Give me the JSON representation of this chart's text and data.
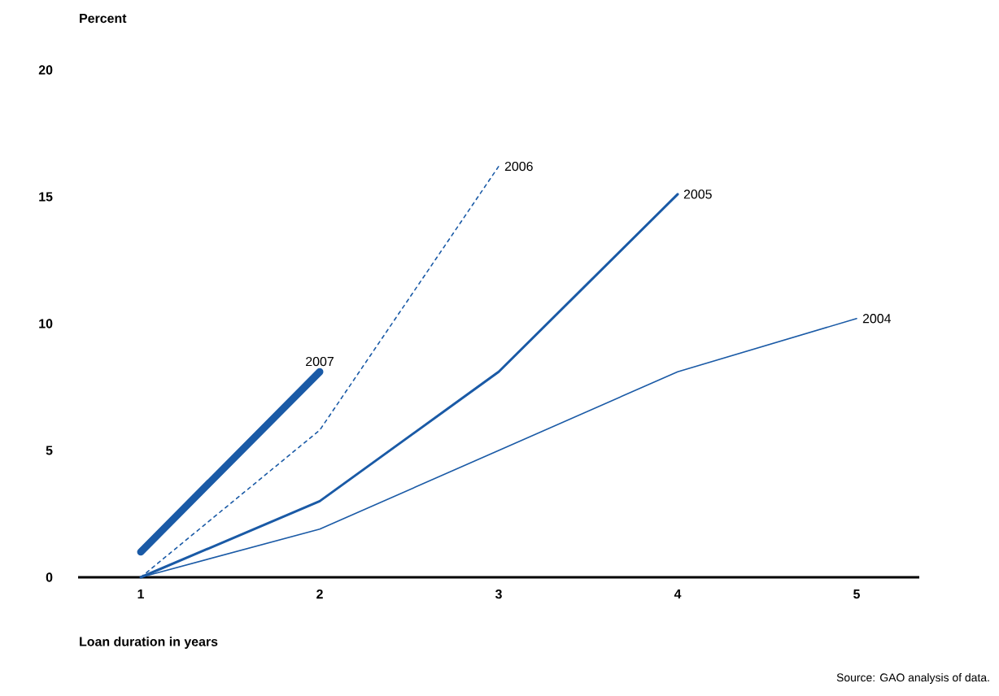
{
  "chart_data": {
    "type": "line",
    "ylabel": "Percent",
    "xlabel": "Loan duration in years",
    "x": [
      1,
      2,
      3,
      4,
      5
    ],
    "xlim": [
      0.65,
      5.35
    ],
    "xticks": [
      1,
      2,
      3,
      4,
      5
    ],
    "ylim": [
      0,
      20
    ],
    "yticks": [
      0,
      5,
      10,
      15,
      20
    ],
    "grid": false,
    "marker": "none",
    "series": [
      {
        "name": "2007",
        "color": "#1a5aa6",
        "values": [
          1.0,
          8.1,
          null,
          null,
          null
        ],
        "line_style": "solid"
      },
      {
        "name": "2006",
        "color": "#1a5aa6",
        "values": [
          0,
          5.8,
          16.2,
          null,
          null
        ],
        "line_style": "dashed"
      },
      {
        "name": "2005",
        "color": "#1a5aa6",
        "values": [
          0,
          3.0,
          8.1,
          15.1,
          null
        ],
        "line_style": "solid"
      },
      {
        "name": "2004",
        "color": "#1a5aa6",
        "values": [
          0,
          1.9,
          5.0,
          8.1,
          10.2
        ],
        "line_style": "solid"
      }
    ],
    "annotations": [
      "Source: GAO analysis of data."
    ]
  }
}
